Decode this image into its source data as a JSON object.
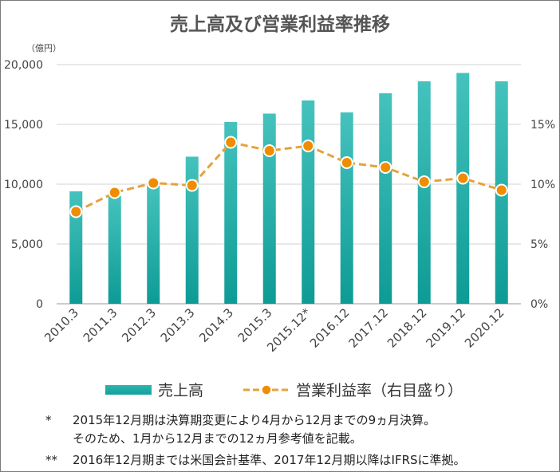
{
  "chart_data": {
    "type": "bar",
    "title": "売上高及び営業利益率推移",
    "y_unit": "（億円）",
    "categories": [
      "2010.3",
      "2011.3",
      "2012.3",
      "2013.3",
      "2014.3",
      "2015.3",
      "2015.12*",
      "2016.12",
      "2017.12",
      "2018.12",
      "2019.12",
      "2020.12"
    ],
    "series": [
      {
        "name": "売上高",
        "type": "bar",
        "axis": "left",
        "color": "#1aa7a2",
        "values": [
          9400,
          9000,
          9900,
          12300,
          15200,
          15900,
          17000,
          16000,
          17600,
          18600,
          19300,
          18600
        ]
      },
      {
        "name": "営業利益率（右目盛り）",
        "type": "line",
        "axis": "right",
        "color": "#f08c00",
        "line_color": "#e5a23a",
        "values": [
          7.7,
          9.3,
          10.1,
          9.9,
          13.5,
          12.8,
          13.2,
          11.8,
          11.4,
          10.2,
          10.5,
          9.5
        ]
      }
    ],
    "ylim_left": [
      0,
      20000
    ],
    "yticks_left": [
      "0",
      "5,000",
      "10,000",
      "15,000",
      "20,000"
    ],
    "ylim_right": [
      0,
      20
    ],
    "yticks_right": [
      "0%",
      "5%",
      "10%",
      "15%"
    ],
    "grid": true,
    "legend_position": "bottom"
  },
  "legend": {
    "bar_label": "売上高",
    "line_label": "営業利益率（右目盛り）"
  },
  "notes": [
    {
      "mark": "*",
      "lines": [
        "2015年12月期は決算期変更により4月から12月までの9ヵ月決算。",
        "そのため、1月から12月までの12ヵ月参考値を記載。"
      ]
    },
    {
      "mark": "**",
      "lines": [
        "2016年12月期までは米国会計基準、2017年12月期以降はIFRSに準拠。"
      ]
    }
  ]
}
